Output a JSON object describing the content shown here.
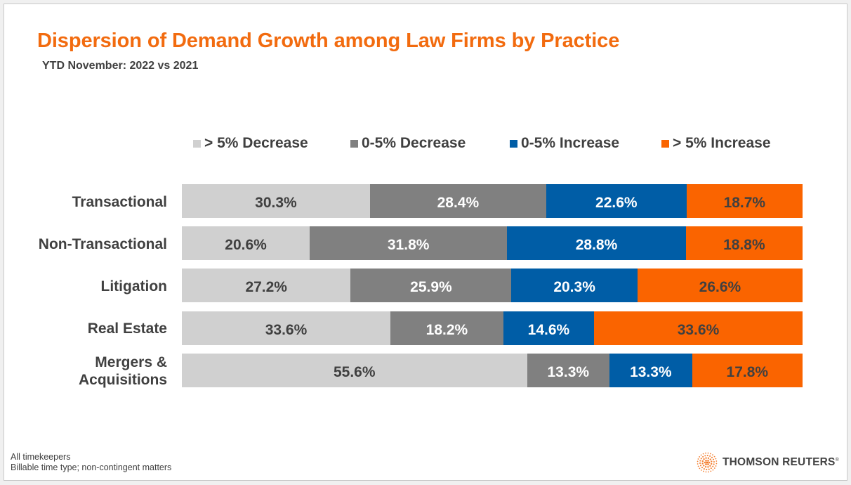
{
  "chart_data": {
    "type": "bar",
    "orientation": "horizontal",
    "stacked": "100%",
    "title": "Dispersion of Demand Growth among Law Firms by Practice",
    "subtitle": "YTD November: 2022 vs 2021",
    "xlabel": "",
    "ylabel": "",
    "legend_position": "top",
    "grid": false,
    "categories": [
      "Transactional",
      "Non-Transactional",
      "Litigation",
      "Real Estate",
      "Mergers & Acquisitions"
    ],
    "category_lines": [
      [
        "Transactional"
      ],
      [
        "Non-Transactional"
      ],
      [
        "Litigation"
      ],
      [
        "Real Estate"
      ],
      [
        "Mergers &",
        "Acquisitions"
      ]
    ],
    "series": [
      {
        "name": "> 5% Decrease",
        "color": "#d0d0d0",
        "label_color": "#404040",
        "values": [
          30.3,
          20.6,
          27.2,
          33.6,
          55.6
        ],
        "labels": [
          "30.3%",
          "20.6%",
          "27.2%",
          "33.6%",
          "55.6%"
        ]
      },
      {
        "name": "0-5% Decrease",
        "color": "#808080",
        "label_color": "#ffffff",
        "values": [
          28.4,
          31.8,
          25.9,
          18.2,
          13.3
        ],
        "labels": [
          "28.4%",
          "31.8%",
          "25.9%",
          "18.2%",
          "13.3%"
        ]
      },
      {
        "name": "0-5% Increase",
        "color": "#005da6",
        "label_color": "#ffffff",
        "values": [
          22.6,
          28.8,
          20.3,
          14.6,
          13.3
        ],
        "labels": [
          "22.6%",
          "28.8%",
          "20.3%",
          "14.6%",
          "13.3%"
        ]
      },
      {
        "name": "> 5% Increase",
        "color": "#fa6400",
        "label_color": "#404040",
        "values": [
          18.7,
          18.8,
          26.6,
          33.6,
          17.8
        ],
        "labels": [
          "18.7%",
          "18.8%",
          "26.6%",
          "33.6%",
          "17.8%"
        ]
      }
    ]
  },
  "footnotes": [
    "All timekeepers",
    "Billable time type; non-contingent matters"
  ],
  "brand": {
    "name": "THOMSON REUTERS",
    "mark": "®",
    "color": "#f26b0f"
  }
}
